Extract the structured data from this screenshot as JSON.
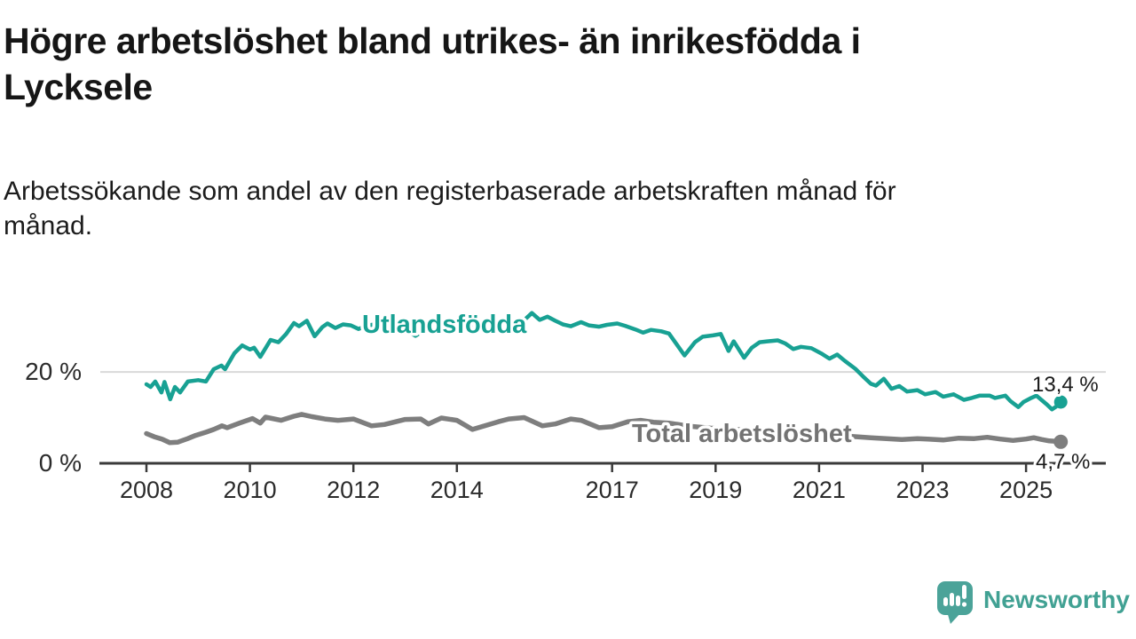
{
  "header": {
    "title_lines": [
      "Högre arbetslöshet bland utrikes- än inrikesfödda i",
      "Lycksele"
    ],
    "subtitle_lines": [
      "Arbetssökande som andel av den registerbaserade arbetskraften månad för",
      "månad."
    ]
  },
  "footer": {
    "brand": "Newsworthy"
  },
  "colors": {
    "utlandsfodda_line": "#18a193",
    "total_line": "#7e7e7e",
    "total_label": "#737373",
    "axis": "#3a3a3a",
    "grid": "#d9d9d9",
    "brand_bubble": "#4ba399",
    "brand_text": "#41a193"
  },
  "chart_data": {
    "type": "line",
    "title": "Högre arbetslöshet bland utrikes- än inrikesfödda i Lycksele",
    "subtitle": "Arbetssökande som andel av den registerbaserade arbetskraften månad för månad.",
    "unit": "%",
    "grid": "horizontal-20-only",
    "x_axis": {
      "range": [
        2007.1,
        2026.5
      ],
      "ticks": [
        {
          "value": 2008,
          "label": "2008"
        },
        {
          "value": 2010,
          "label": "2010"
        },
        {
          "value": 2012,
          "label": "2012"
        },
        {
          "value": 2014,
          "label": "2014"
        },
        {
          "value": 2017,
          "label": "2017"
        },
        {
          "value": 2019,
          "label": "2019"
        },
        {
          "value": 2021,
          "label": "2021"
        },
        {
          "value": 2023,
          "label": "2023"
        },
        {
          "value": 2025,
          "label": "2025"
        }
      ]
    },
    "y_axis": {
      "range": [
        0,
        35
      ],
      "ticks": [
        {
          "value": 20,
          "label": "20 %"
        },
        {
          "value": 0,
          "label": "0 %"
        }
      ]
    },
    "series": [
      {
        "name": "Total arbetslöshet",
        "color": "#7e7e7e",
        "label_color": "#737373",
        "line_width": 5.5,
        "end_value": 4.7,
        "end_label": "4,7 %",
        "x": [
          2008.0,
          2008.15,
          2008.3,
          2008.45,
          2008.6,
          2008.8,
          2008.95,
          2009.15,
          2009.3,
          2009.46,
          2009.56,
          2009.8,
          2010.05,
          2010.2,
          2010.3,
          2010.6,
          2010.85,
          2011.0,
          2011.2,
          2011.45,
          2011.7,
          2012.0,
          2012.35,
          2012.6,
          2013.0,
          2013.3,
          2013.45,
          2013.7,
          2014.0,
          2014.3,
          2014.8,
          2015.0,
          2015.3,
          2015.65,
          2015.9,
          2016.2,
          2016.4,
          2016.75,
          2017.0,
          2017.3,
          2017.55,
          2017.8,
          2018.1,
          2018.5,
          2018.9,
          2019.2,
          2019.6,
          2020.0,
          2020.4,
          2020.8,
          2021.2,
          2021.6,
          2022.0,
          2022.3,
          2022.6,
          2022.9,
          2023.1,
          2023.4,
          2023.7,
          2024.0,
          2024.25,
          2024.5,
          2024.75,
          2025.0,
          2025.15,
          2025.3,
          2025.45,
          2025.58,
          2025.67
        ],
        "values": [
          6.5,
          5.8,
          5.3,
          4.5,
          4.6,
          5.4,
          6.1,
          6.8,
          7.4,
          8.2,
          7.8,
          8.8,
          9.8,
          8.8,
          10.1,
          9.4,
          10.3,
          10.7,
          10.2,
          9.7,
          9.4,
          9.7,
          8.2,
          8.5,
          9.6,
          9.7,
          8.6,
          9.9,
          9.4,
          7.4,
          9.1,
          9.7,
          10.0,
          8.2,
          8.6,
          9.7,
          9.4,
          7.8,
          8.0,
          9.1,
          9.4,
          9.0,
          8.8,
          8.1,
          7.7,
          7.5,
          7.3,
          7.4,
          7.1,
          6.7,
          6.3,
          5.9,
          5.6,
          5.4,
          5.2,
          5.4,
          5.3,
          5.1,
          5.5,
          5.4,
          5.7,
          5.3,
          5.0,
          5.3,
          5.6,
          5.2,
          4.9,
          4.8,
          4.7
        ]
      },
      {
        "name": "Utlandsfödda",
        "color": "#18a193",
        "label_color": "#18a193",
        "line_width": 4.5,
        "end_value": 13.4,
        "end_label": "13,4 %",
        "x": [
          2008.0,
          2008.08,
          2008.17,
          2008.29,
          2008.35,
          2008.46,
          2008.55,
          2008.65,
          2008.8,
          2009.0,
          2009.15,
          2009.3,
          2009.45,
          2009.52,
          2009.7,
          2009.85,
          2010.0,
          2010.08,
          2010.2,
          2010.4,
          2010.55,
          2010.7,
          2010.85,
          2010.95,
          2011.1,
          2011.25,
          2011.4,
          2011.5,
          2011.65,
          2011.8,
          2011.95,
          2012.1,
          2012.25,
          2012.4,
          2012.55,
          2012.7,
          2012.9,
          2013.05,
          2013.2,
          2013.4,
          2013.6,
          2013.75,
          2013.9,
          2014.1,
          2014.25,
          2014.4,
          2014.6,
          2014.75,
          2014.9,
          2015.1,
          2015.25,
          2015.45,
          2015.6,
          2015.75,
          2015.9,
          2016.05,
          2016.2,
          2016.4,
          2016.55,
          2016.75,
          2016.9,
          2017.1,
          2017.25,
          2017.45,
          2017.6,
          2017.75,
          2017.95,
          2018.1,
          2018.25,
          2018.4,
          2018.6,
          2018.75,
          2018.95,
          2019.1,
          2019.25,
          2019.35,
          2019.55,
          2019.7,
          2019.85,
          2020.0,
          2020.2,
          2020.35,
          2020.5,
          2020.65,
          2020.85,
          2021.05,
          2021.2,
          2021.35,
          2021.5,
          2021.7,
          2021.85,
          2022.0,
          2022.1,
          2022.25,
          2022.4,
          2022.55,
          2022.7,
          2022.9,
          2023.05,
          2023.25,
          2023.4,
          2023.6,
          2023.8,
          2023.95,
          2024.1,
          2024.3,
          2024.4,
          2024.6,
          2024.7,
          2024.85,
          2024.95,
          2025.1,
          2025.2,
          2025.4,
          2025.5,
          2025.58,
          2025.67
        ],
        "values": [
          17.3,
          16.7,
          17.9,
          15.5,
          17.8,
          14.0,
          16.7,
          15.5,
          17.9,
          18.2,
          17.9,
          20.6,
          21.4,
          20.6,
          24.1,
          25.8,
          24.9,
          25.3,
          23.3,
          27.0,
          26.5,
          28.3,
          30.7,
          30.0,
          31.2,
          27.8,
          29.8,
          30.6,
          29.6,
          30.4,
          30.2,
          29.4,
          30.1,
          30.4,
          29.4,
          29.9,
          29.2,
          28.9,
          27.9,
          29.4,
          29.0,
          29.6,
          29.2,
          29.5,
          30.1,
          29.4,
          29.8,
          30.2,
          29.7,
          30.3,
          30.8,
          32.9,
          31.4,
          32.1,
          31.2,
          30.4,
          30.0,
          30.9,
          30.2,
          29.9,
          30.3,
          30.6,
          30.1,
          29.3,
          28.6,
          29.2,
          28.9,
          28.4,
          26.0,
          23.6,
          26.5,
          27.7,
          28.0,
          28.3,
          24.6,
          26.7,
          23.1,
          25.3,
          26.5,
          26.7,
          26.9,
          26.2,
          25.0,
          25.5,
          25.2,
          24.0,
          22.9,
          23.8,
          22.4,
          20.7,
          19.0,
          17.4,
          17.0,
          18.5,
          16.3,
          16.9,
          15.7,
          16.0,
          15.1,
          15.6,
          14.6,
          15.1,
          13.9,
          14.3,
          14.8,
          14.8,
          14.3,
          14.8,
          13.6,
          12.3,
          13.4,
          14.3,
          14.8,
          12.9,
          11.8,
          12.4,
          13.4
        ]
      }
    ],
    "legend_position": "inline-labels"
  }
}
